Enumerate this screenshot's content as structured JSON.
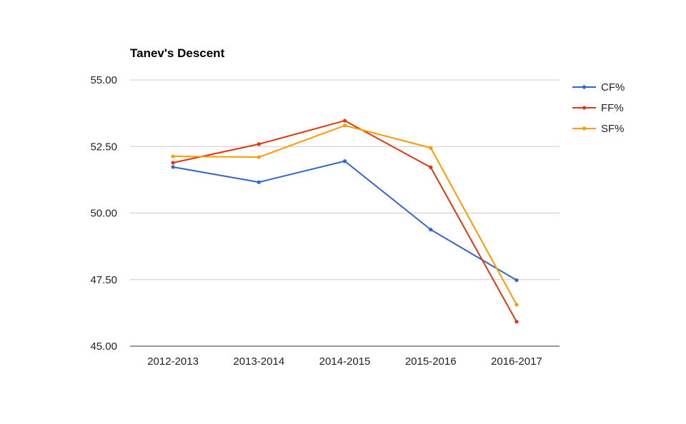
{
  "chart_data": {
    "type": "line",
    "title": "Tanev's Descent",
    "xlabel": "",
    "ylabel": "",
    "categories": [
      "2012-2013",
      "2013-2014",
      "2014-2015",
      "2015-2016",
      "2016-2017"
    ],
    "ylim": [
      45,
      55
    ],
    "yticks": [
      45,
      47.5,
      50,
      52.5,
      55
    ],
    "ytick_labels": [
      "45.00",
      "47.50",
      "50.00",
      "52.50",
      "55.00"
    ],
    "grid": true,
    "legend_position": "right",
    "series": [
      {
        "name": "CF%",
        "color": "#3366cc",
        "values": [
          51.73,
          51.16,
          51.95,
          49.38,
          47.48
        ]
      },
      {
        "name": "FF%",
        "color": "#dc3912",
        "values": [
          51.89,
          52.59,
          53.47,
          51.72,
          45.92
        ]
      },
      {
        "name": "SF%",
        "color": "#ff9900",
        "values": [
          52.13,
          52.1,
          53.29,
          52.45,
          46.56
        ]
      }
    ]
  }
}
